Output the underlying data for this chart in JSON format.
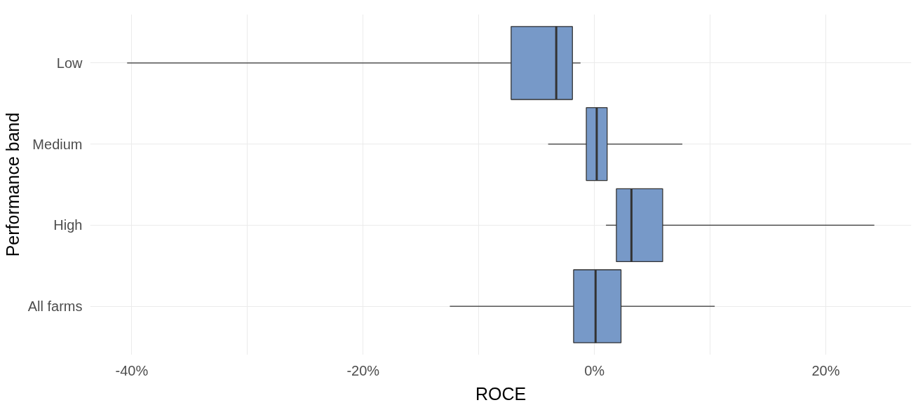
{
  "chart_data": {
    "type": "box",
    "orientation": "horizontal",
    "xlabel": "ROCE",
    "ylabel": "Performance band",
    "categories": [
      "Low",
      "Medium",
      "High",
      "All farms"
    ],
    "color": "#7799c8",
    "boxes": [
      {
        "low": -40.4,
        "q1": -7.2,
        "median": -3.3,
        "q3": -1.9,
        "high": -1.2
      },
      {
        "low": -4.0,
        "q1": -0.7,
        "median": 0.2,
        "q3": 1.1,
        "high": 7.6
      },
      {
        "low": 1.0,
        "q1": 1.9,
        "median": 3.2,
        "q3": 5.9,
        "high": 24.2
      },
      {
        "low": -12.5,
        "q1": -1.8,
        "median": 0.1,
        "q3": 2.3,
        "high": 10.4
      }
    ],
    "xlim": [
      -43.6,
      27.4
    ],
    "xticks": [
      {
        "value": -40,
        "label": "-40%"
      },
      {
        "value": -30,
        "label": null
      },
      {
        "value": -20,
        "label": "-20%"
      },
      {
        "value": -10,
        "label": null
      },
      {
        "value": 0,
        "label": "0%"
      },
      {
        "value": 10,
        "label": null
      },
      {
        "value": 20,
        "label": "20%"
      }
    ],
    "grid": true
  }
}
